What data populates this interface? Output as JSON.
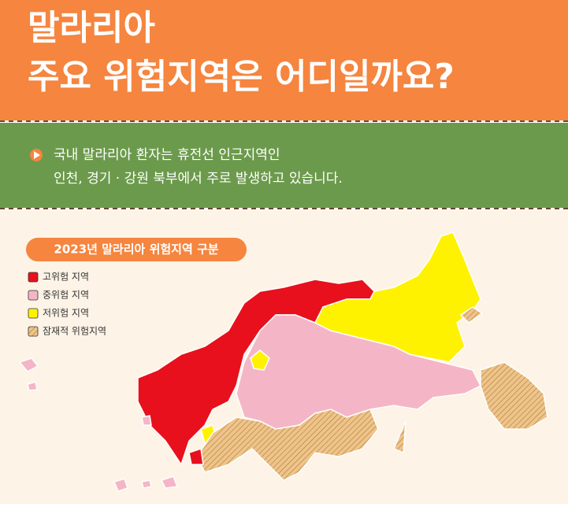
{
  "header": {
    "title_lines": [
      "말라리아",
      "주요 위험지역은 어디일까요?"
    ]
  },
  "intro": {
    "lines": [
      "국내 말라리아 환자는 휴전선 인근지역인",
      "인천, 경기 · 강원 북부에서 주로 발생하고 있습니다."
    ]
  },
  "legend": {
    "title": "2023년 말라리아 위험지역 구분",
    "items": [
      {
        "label": "고위험 지역",
        "color": "#e8101d"
      },
      {
        "label": "중위험 지역",
        "color": "#f4b6c6"
      },
      {
        "label": "저위험 지역",
        "color": "#fff200"
      },
      {
        "label": "잠재적 위험지역",
        "color": "#eec48a"
      }
    ]
  }
}
